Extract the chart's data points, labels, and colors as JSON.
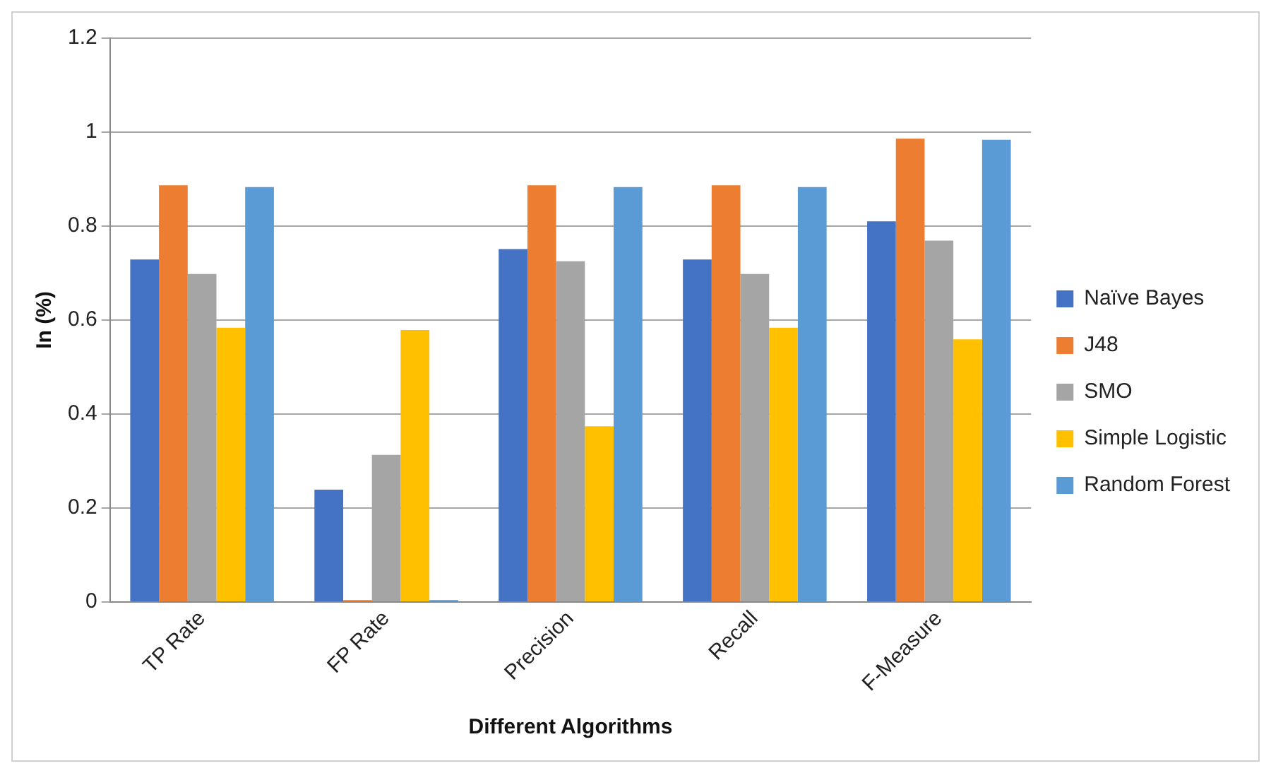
{
  "chart_data": {
    "type": "bar",
    "xlabel": "Different Algorithms",
    "ylabel": "In (%)",
    "categories": [
      "TP Rate",
      "FP Rate",
      "Precision",
      "Recall",
      "F-Measure"
    ],
    "series": [
      {
        "name": "Naïve Bayes",
        "color": "#4472c4",
        "values": [
          0.729,
          0.239,
          0.751,
          0.729,
          0.81
        ]
      },
      {
        "name": "J48",
        "color": "#ed7d31",
        "values": [
          0.887,
          0.004,
          0.887,
          0.887,
          0.986
        ]
      },
      {
        "name": "SMO",
        "color": "#a5a5a5",
        "values": [
          0.698,
          0.313,
          0.725,
          0.698,
          0.769
        ]
      },
      {
        "name": "Simple Logistic",
        "color": "#ffc000",
        "values": [
          0.584,
          0.579,
          0.374,
          0.584,
          0.559
        ]
      },
      {
        "name": "Random Forest",
        "color": "#5b9bd5",
        "values": [
          0.883,
          0.004,
          0.883,
          0.883,
          0.984
        ]
      }
    ],
    "ylim": [
      0,
      1.2
    ],
    "yticks": [
      0,
      0.2,
      0.4,
      0.6,
      0.8,
      1,
      1.2
    ],
    "grid": "y",
    "legend": "right"
  }
}
